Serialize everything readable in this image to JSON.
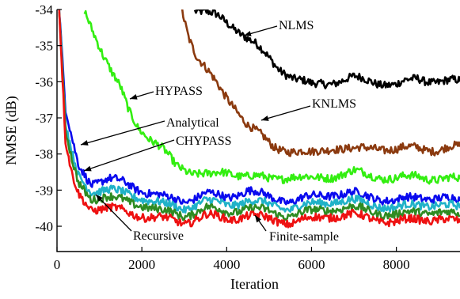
{
  "chart_data": {
    "type": "line",
    "xlabel": "Iteration",
    "ylabel": "NMSE (dB)",
    "xlim": [
      0,
      9500
    ],
    "ylim": [
      -40.7,
      -34
    ],
    "x_ticks": [
      0,
      2000,
      4000,
      6000,
      8000
    ],
    "y_ticks": [
      -34,
      -35,
      -36,
      -37,
      -38,
      -39,
      -40
    ],
    "grid": false,
    "series": [
      {
        "name": "NLMS",
        "color": "#000000",
        "points": [
          [
            3250,
            -34
          ],
          [
            3800,
            -34.2
          ],
          [
            4200,
            -34.5
          ],
          [
            4700,
            -35.0
          ],
          [
            5200,
            -35.6
          ],
          [
            5600,
            -35.9
          ],
          [
            6000,
            -36.1
          ],
          [
            6500,
            -36.0
          ],
          [
            7000,
            -35.9
          ],
          [
            7500,
            -36.0
          ],
          [
            8000,
            -36.1
          ],
          [
            8500,
            -35.9
          ],
          [
            9000,
            -36.0
          ],
          [
            9500,
            -36.0
          ]
        ]
      },
      {
        "name": "KNLMS",
        "color": "#8B3A0F",
        "points": [
          [
            2950,
            -34
          ],
          [
            3100,
            -34.7
          ],
          [
            3300,
            -35.3
          ],
          [
            3600,
            -35.8
          ],
          [
            3900,
            -36.3
          ],
          [
            4200,
            -36.7
          ],
          [
            4500,
            -37.2
          ],
          [
            4800,
            -37.5
          ],
          [
            5100,
            -37.8
          ],
          [
            5500,
            -37.9
          ],
          [
            6000,
            -38.0
          ],
          [
            6500,
            -37.8
          ],
          [
            7000,
            -37.9
          ],
          [
            7500,
            -37.8
          ],
          [
            8000,
            -37.9
          ],
          [
            8500,
            -37.8
          ],
          [
            9000,
            -37.9
          ],
          [
            9500,
            -37.8
          ]
        ]
      },
      {
        "name": "HYPASS",
        "color": "#33EE11",
        "points": [
          [
            650,
            -34
          ],
          [
            900,
            -34.7
          ],
          [
            1100,
            -35.3
          ],
          [
            1300,
            -35.8
          ],
          [
            1500,
            -36.2
          ],
          [
            1700,
            -36.8
          ],
          [
            1900,
            -37.2
          ],
          [
            2200,
            -37.6
          ],
          [
            2500,
            -37.9
          ],
          [
            2800,
            -38.3
          ],
          [
            3200,
            -38.5
          ],
          [
            3600,
            -38.6
          ],
          [
            4000,
            -38.5
          ],
          [
            4500,
            -38.6
          ],
          [
            5000,
            -38.7
          ],
          [
            5500,
            -38.6
          ],
          [
            6000,
            -38.7
          ],
          [
            6500,
            -38.6
          ],
          [
            7000,
            -38.5
          ],
          [
            7500,
            -38.6
          ],
          [
            8000,
            -38.7
          ],
          [
            8500,
            -38.6
          ],
          [
            9000,
            -38.7
          ],
          [
            9500,
            -38.7
          ]
        ]
      },
      {
        "name": "",
        "color": "#0A0AEE",
        "points": [
          [
            50,
            -34
          ],
          [
            200,
            -36.8
          ],
          [
            350,
            -37.6
          ],
          [
            500,
            -38.3
          ],
          [
            800,
            -38.8
          ],
          [
            1200,
            -38.7
          ],
          [
            1600,
            -38.8
          ],
          [
            2000,
            -39.0
          ],
          [
            2500,
            -39.2
          ],
          [
            3000,
            -39.3
          ],
          [
            3500,
            -39.1
          ],
          [
            4000,
            -39.2
          ],
          [
            4500,
            -39.0
          ],
          [
            5000,
            -39.2
          ],
          [
            5500,
            -39.3
          ],
          [
            6000,
            -39.2
          ],
          [
            6500,
            -39.1
          ],
          [
            7000,
            -39.1
          ],
          [
            7500,
            -39.2
          ],
          [
            8000,
            -39.3
          ],
          [
            8500,
            -39.2
          ],
          [
            9000,
            -39.2
          ],
          [
            9500,
            -39.3
          ]
        ]
      },
      {
        "name": "",
        "color": "#20B2C8",
        "points": [
          [
            50,
            -34
          ],
          [
            200,
            -37.2
          ],
          [
            350,
            -38.0
          ],
          [
            500,
            -38.6
          ],
          [
            800,
            -39.0
          ],
          [
            1200,
            -39.0
          ],
          [
            1600,
            -39.1
          ],
          [
            2000,
            -39.2
          ],
          [
            2500,
            -39.4
          ],
          [
            3000,
            -39.5
          ],
          [
            3500,
            -39.3
          ],
          [
            4000,
            -39.4
          ],
          [
            4500,
            -39.3
          ],
          [
            5000,
            -39.4
          ],
          [
            5500,
            -39.5
          ],
          [
            6000,
            -39.4
          ],
          [
            6500,
            -39.3
          ],
          [
            7000,
            -39.3
          ],
          [
            7500,
            -39.4
          ],
          [
            8000,
            -39.5
          ],
          [
            8500,
            -39.4
          ],
          [
            9000,
            -39.4
          ],
          [
            9500,
            -39.5
          ]
        ]
      },
      {
        "name": "",
        "color": "#2E8B22",
        "points": [
          [
            50,
            -34
          ],
          [
            200,
            -37.4
          ],
          [
            350,
            -38.2
          ],
          [
            500,
            -38.8
          ],
          [
            800,
            -39.2
          ],
          [
            1200,
            -39.2
          ],
          [
            1600,
            -39.3
          ],
          [
            2000,
            -39.4
          ],
          [
            2500,
            -39.6
          ],
          [
            3000,
            -39.7
          ],
          [
            3500,
            -39.5
          ],
          [
            4000,
            -39.6
          ],
          [
            4500,
            -39.5
          ],
          [
            5000,
            -39.6
          ],
          [
            5500,
            -39.7
          ],
          [
            6000,
            -39.6
          ],
          [
            6500,
            -39.5
          ],
          [
            7000,
            -39.5
          ],
          [
            7500,
            -39.6
          ],
          [
            8000,
            -39.7
          ],
          [
            8500,
            -39.6
          ],
          [
            9000,
            -39.6
          ],
          [
            9500,
            -39.7
          ]
        ]
      },
      {
        "name": "",
        "color": "#EE1111",
        "points": [
          [
            50,
            -34
          ],
          [
            200,
            -37.7
          ],
          [
            350,
            -38.6
          ],
          [
            500,
            -39.1
          ],
          [
            800,
            -39.5
          ],
          [
            1200,
            -39.5
          ],
          [
            1600,
            -39.6
          ],
          [
            2000,
            -39.7
          ],
          [
            2500,
            -39.8
          ],
          [
            3000,
            -39.9
          ],
          [
            3500,
            -39.7
          ],
          [
            4000,
            -39.8
          ],
          [
            4500,
            -39.7
          ],
          [
            5000,
            -39.8
          ],
          [
            5500,
            -39.9
          ],
          [
            6000,
            -39.8
          ],
          [
            6500,
            -39.7
          ],
          [
            7000,
            -39.7
          ],
          [
            7500,
            -39.8
          ],
          [
            8000,
            -39.9
          ],
          [
            8500,
            -39.8
          ],
          [
            9000,
            -39.8
          ],
          [
            9500,
            -39.9
          ]
        ]
      }
    ],
    "annotations": [
      {
        "text": "NLMS"
      },
      {
        "text": "KNLMS"
      },
      {
        "text": "HYPASS"
      },
      {
        "text": "Analytical"
      },
      {
        "text": "CHYPASS"
      },
      {
        "text": "Recursive"
      },
      {
        "text": "Finite-sample"
      }
    ]
  }
}
